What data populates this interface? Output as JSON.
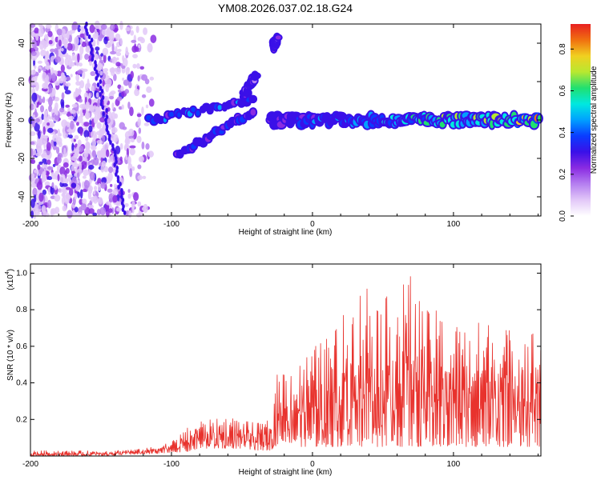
{
  "title": "YM08.2026.037.02.18.G24",
  "colors": {
    "colormap": [
      "#ffffff",
      "#e2c8f8",
      "#b57ff0",
      "#8a2be2",
      "#3a10e8",
      "#0a3cff",
      "#00a0ff",
      "#00e8e0",
      "#20e070",
      "#b8e830",
      "#f0d020",
      "#f07010",
      "#e82020"
    ],
    "snr_line": "#e8322d",
    "axis": "#000000"
  },
  "chart_data": [
    {
      "type": "heatmap",
      "title": "",
      "xlabel": "Height of straight line (km)",
      "ylabel": "Frequency (Hz)",
      "xlim": [
        -200,
        162
      ],
      "ylim": [
        -50,
        50
      ],
      "xticks": [
        -200,
        -100,
        0,
        100
      ],
      "yticks": [
        -40,
        -20,
        0,
        20,
        40
      ],
      "colorbar": {
        "label": "Normalized spectral amplitude",
        "range": [
          0.0,
          0.92
        ],
        "ticks": [
          0.0,
          0.2,
          0.4,
          0.6,
          0.8
        ]
      },
      "features": {
        "noise_region_km": [
          -200,
          -110
        ],
        "main_band": {
          "from_km": -30,
          "to_km": 162,
          "freq_hz": 0,
          "amp_start": 0.35,
          "amp_end": 0.85
        },
        "branches": [
          {
            "from": [
              -115,
              0
            ],
            "to": [
              -42,
              10
            ],
            "amp": 0.42
          },
          {
            "from": [
              -95,
              -18
            ],
            "to": [
              -42,
              5
            ],
            "amp": 0.38
          },
          {
            "from": [
              -50,
              12
            ],
            "to": [
              -40,
              23
            ],
            "amp": 0.3
          },
          {
            "from": [
              -28,
              38
            ],
            "to": [
              -25,
              42
            ],
            "amp": 0.25
          }
        ]
      }
    },
    {
      "type": "line",
      "title": "",
      "xlabel": "Height of straight line (km)",
      "ylabel": "SNR (10 * v/v)",
      "y_scale_label": "(x10",
      "y_scale_exp": "4",
      "y_scale_close": ")",
      "xlim": [
        -200,
        162
      ],
      "ylim": [
        0,
        1.05
      ],
      "xticks": [
        -200,
        -100,
        0,
        100
      ],
      "yticks": [
        0.2,
        0.4,
        0.6,
        0.8,
        1.0
      ],
      "envelope": {
        "x": [
          -200,
          -150,
          -120,
          -110,
          -100,
          -90,
          -80,
          -70,
          -60,
          -50,
          -40,
          -30,
          -25,
          -20,
          -10,
          0,
          10,
          20,
          30,
          40,
          50,
          60,
          70,
          80,
          90,
          100,
          110,
          120,
          130,
          140,
          150,
          162
        ],
        "max": [
          0.03,
          0.03,
          0.04,
          0.06,
          0.08,
          0.15,
          0.2,
          0.2,
          0.22,
          0.2,
          0.18,
          0.2,
          0.45,
          0.5,
          0.52,
          0.6,
          0.65,
          0.75,
          0.9,
          1.0,
          0.85,
          0.95,
          1.0,
          0.8,
          0.8,
          0.75,
          0.72,
          0.75,
          0.75,
          0.7,
          0.72,
          0.7
        ],
        "min": [
          0.0,
          0.0,
          0.01,
          0.01,
          0.02,
          0.02,
          0.04,
          0.04,
          0.04,
          0.04,
          0.03,
          0.03,
          0.06,
          0.08,
          0.05,
          0.05,
          0.05,
          0.05,
          0.05,
          0.05,
          0.05,
          0.05,
          0.05,
          0.05,
          0.05,
          0.05,
          0.05,
          0.05,
          0.05,
          0.05,
          0.05,
          0.05
        ]
      }
    }
  ]
}
